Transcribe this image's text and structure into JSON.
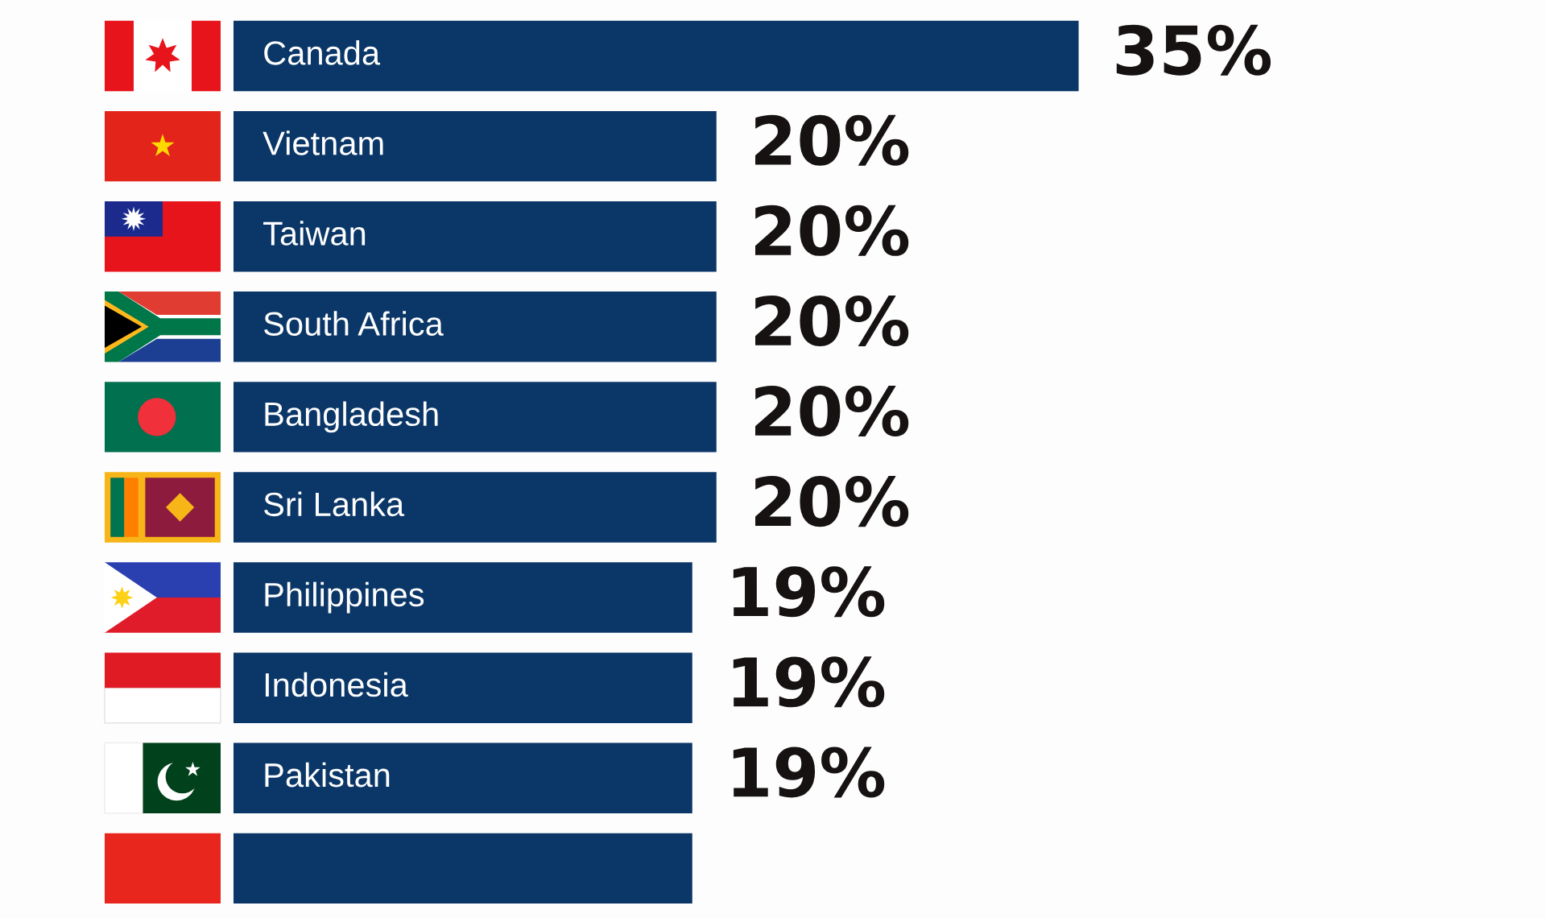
{
  "chart_data": {
    "type": "bar",
    "orientation": "horizontal",
    "categories": [
      "Canada",
      "Vietnam",
      "Taiwan",
      "South Africa",
      "Bangladesh",
      "Sri Lanka",
      "Philippines",
      "Indonesia",
      "Pakistan",
      null
    ],
    "values": [
      35,
      20,
      20,
      20,
      20,
      20,
      19,
      19,
      19,
      19
    ],
    "value_labels": [
      "35%",
      "20%",
      "20%",
      "20%",
      "20%",
      "20%",
      "19%",
      "19%",
      "19%",
      null
    ],
    "color": "#0b3768",
    "tick_labels": false
  }
}
